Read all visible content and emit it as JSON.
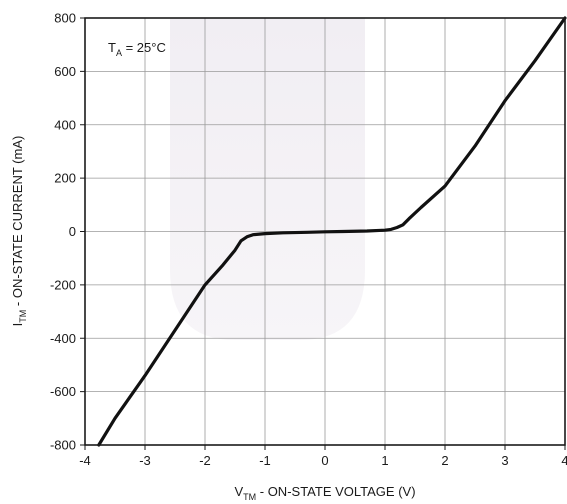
{
  "chart_data": {
    "type": "line",
    "xlabel": {
      "main": "V",
      "sub": "TM",
      "rest": " - ON-STATE VOLTAGE (V)"
    },
    "ylabel": {
      "main": "I",
      "sub": "TM",
      "rest": " - ON-STATE CURRENT (mA)"
    },
    "annotation": {
      "main": "T",
      "sub": "A",
      "rest": " = 25°C"
    },
    "xlim": [
      -4,
      4
    ],
    "ylim": [
      -800,
      800
    ],
    "xticks": [
      -4,
      -3,
      -2,
      -1,
      0,
      1,
      2,
      3,
      4
    ],
    "yticks": [
      800,
      600,
      400,
      200,
      0,
      -200,
      -400,
      -600,
      -800
    ],
    "xtick_labels": [
      "-4",
      "-3",
      "-2",
      "-1",
      "0",
      "1",
      "2",
      "3",
      "4"
    ],
    "ytick_labels": [
      "800",
      "600",
      "400",
      "200",
      "0",
      "-200",
      "-400",
      "-600",
      "-800"
    ],
    "grid": true,
    "series": [
      {
        "color": "#111111",
        "x": [
          -3.77,
          -3.5,
          -3.0,
          -2.5,
          -2.0,
          -1.7,
          -1.5,
          -1.4,
          -1.3,
          -1.2,
          -1.0,
          -0.7,
          -0.3,
          0.0,
          0.3,
          0.7,
          1.0,
          1.1,
          1.2,
          1.3,
          1.4,
          1.6,
          2.0,
          2.5,
          3.0,
          3.5,
          4.0
        ],
        "y": [
          -800,
          -700,
          -540,
          -370,
          -200,
          -125,
          -70,
          -35,
          -20,
          -12,
          -8,
          -5,
          -3,
          -1,
          0,
          2,
          5,
          8,
          15,
          25,
          48,
          90,
          170,
          320,
          490,
          640,
          800
        ]
      }
    ]
  }
}
